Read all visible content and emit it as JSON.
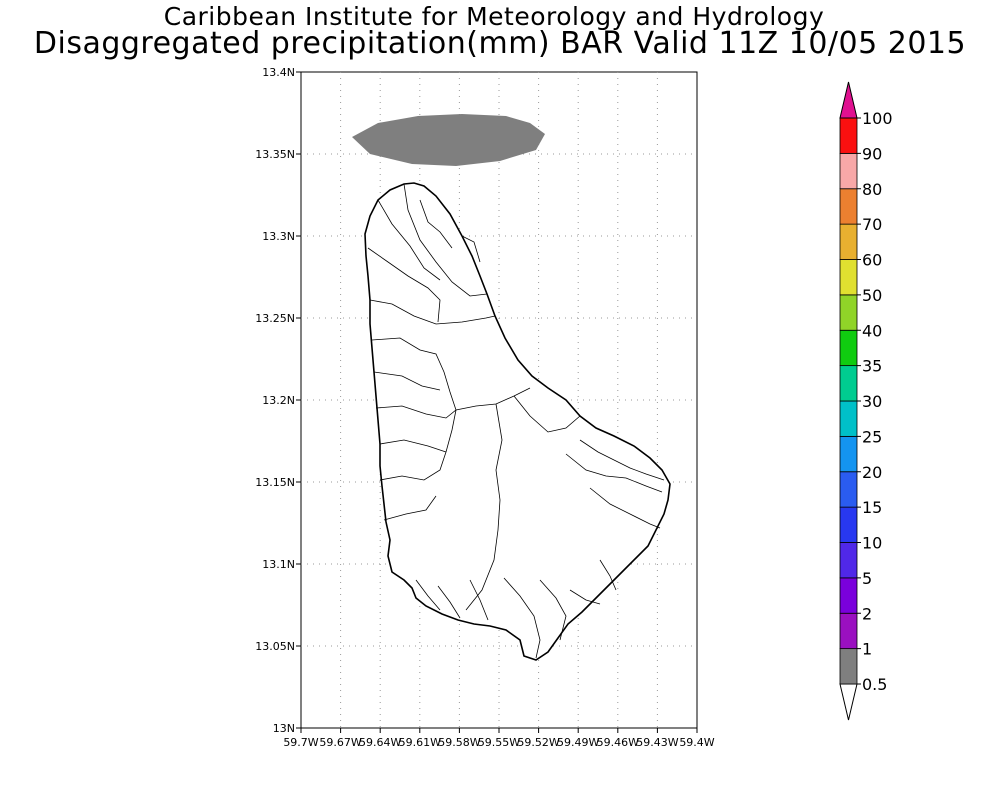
{
  "header": {
    "title_line1": "Caribbean Institute for Meteorology and Hydrology",
    "title_line2": "Disaggregated precipitation(mm) BAR Valid 11Z 10/05 2015"
  },
  "map": {
    "region": "Barbados",
    "lon_range": [
      -59.7,
      -59.4
    ],
    "lat_range": [
      13.0,
      13.4
    ],
    "grid": true,
    "lat_ticks": [
      "13N",
      "13.05N",
      "13.1N",
      "13.15N",
      "13.2N",
      "13.25N",
      "13.3N",
      "13.35N",
      "13.4N"
    ],
    "lon_ticks": [
      "59.7W",
      "59.67W",
      "59.64W",
      "59.61W",
      "59.58W",
      "59.55W",
      "59.52W",
      "59.49W",
      "59.46W",
      "59.43W",
      "59.4W"
    ],
    "precip_area": {
      "category": "0.5-1",
      "color": "#7f7f7f"
    },
    "colors": {
      "frame": "#000000",
      "grid": "#9a9a9a",
      "coast": "#000000"
    }
  },
  "colorbar": {
    "labels": [
      "0.5",
      "1",
      "2",
      "5",
      "10",
      "15",
      "20",
      "25",
      "30",
      "35",
      "40",
      "50",
      "60",
      "70",
      "80",
      "90",
      "100"
    ],
    "colors": [
      "#7f7f7f",
      "#9a10c0",
      "#7a00dc",
      "#5028e8",
      "#2838f0",
      "#2a5cf0",
      "#1494f0",
      "#00c0c8",
      "#00cc90",
      "#10cc10",
      "#90d428",
      "#e0e030",
      "#e8b030",
      "#ec8030",
      "#f8a8a8",
      "#fa1010",
      "#f04040",
      "#e01090"
    ]
  }
}
